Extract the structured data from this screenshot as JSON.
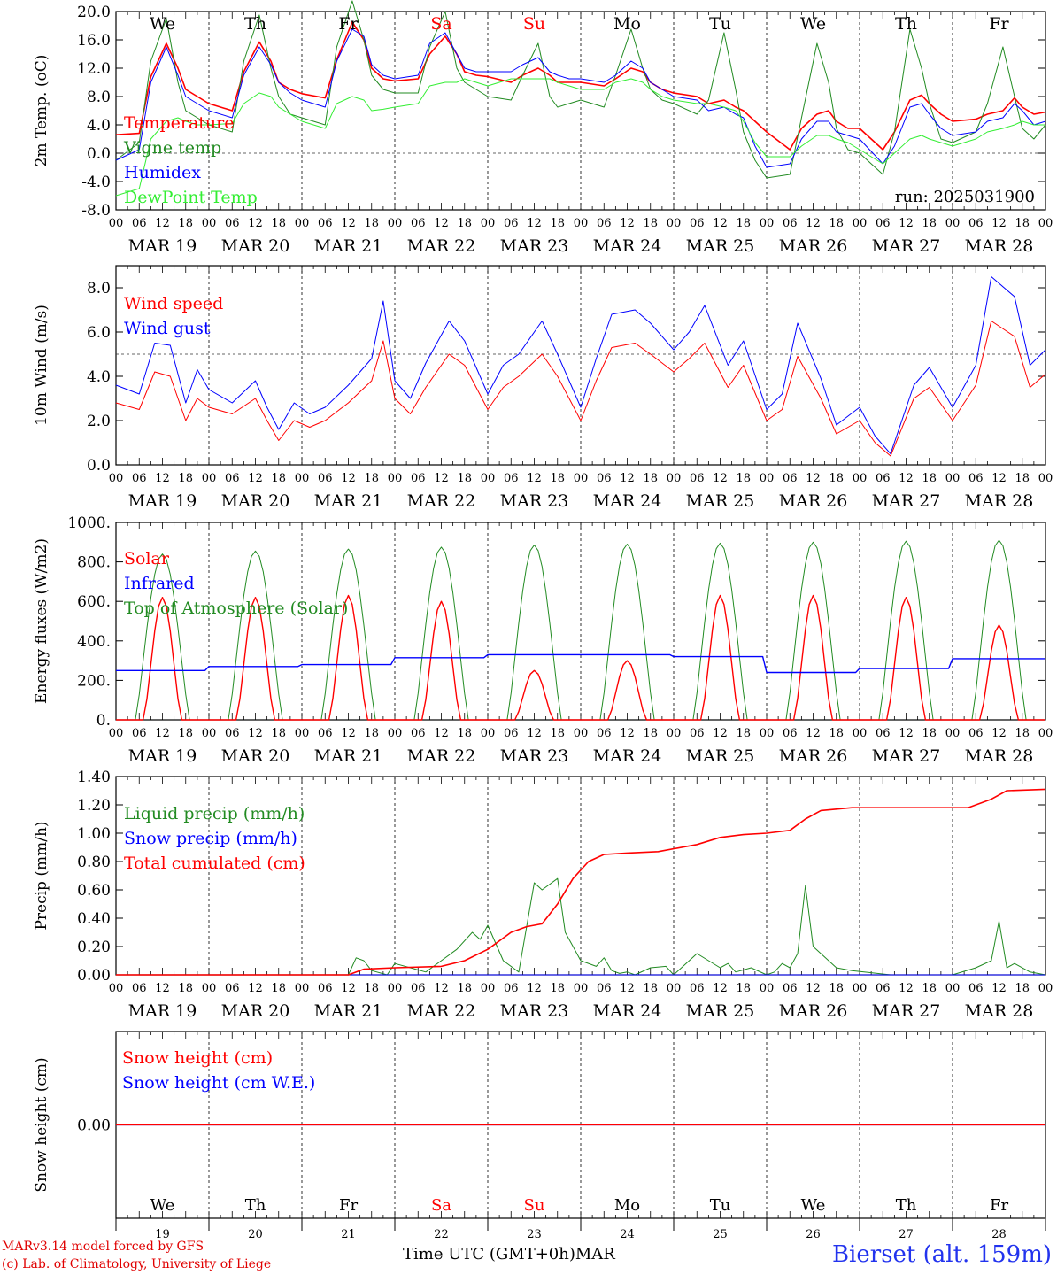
{
  "footer": {
    "credit1": "MARv3.14 model forced by GFS",
    "credit2": "(c) Lab. of Climatology, University of Liege",
    "time_label": "Time UTC (GMT+0h)",
    "month": "MAR",
    "station": "Bierset (alt. 159m)"
  },
  "colors": {
    "red": "#ff0000",
    "blue": "#0000ff",
    "darkgreen": "#228b22",
    "lightgreen": "#33ee33",
    "weekend": "#ff0000",
    "axis": "#000000"
  },
  "chart_data": [
    {
      "type": "line",
      "ylabel": "2m Temp. (oC)",
      "ylim": [
        -8,
        20
      ],
      "yticks": [
        -8,
        -4,
        0,
        4,
        8,
        12,
        16,
        20
      ],
      "ytick_labels": [
        "-8.0",
        "-4.0",
        "0.0",
        "4.0",
        "8.0",
        "12.0",
        "16.0",
        "20.0"
      ],
      "ref_line": 0,
      "run_label": "run: 2025031900",
      "day_names": [
        "We",
        "Th",
        "Fr",
        "Sa",
        "Su",
        "Mo",
        "Tu",
        "We",
        "Th",
        "Fr"
      ],
      "weekend_days": [
        "Sa",
        "Su"
      ],
      "x_hours": [
        0,
        6,
        9,
        13,
        16,
        18,
        21,
        24,
        30,
        33,
        37,
        40,
        42,
        45,
        48,
        54,
        57,
        61,
        64,
        66,
        69,
        72,
        78,
        81,
        85,
        88,
        90,
        93,
        96,
        102,
        105,
        109,
        112,
        114,
        117,
        120,
        126,
        129,
        133,
        136,
        138,
        141,
        144,
        150,
        153,
        157,
        160,
        162,
        165,
        168,
        174,
        177,
        181,
        184,
        186,
        189,
        192,
        198,
        201,
        205,
        208,
        210,
        213,
        216,
        222,
        225,
        229,
        232,
        234,
        237,
        240
      ],
      "series": [
        {
          "name": "Temperature",
          "color": "red",
          "width": 1.6,
          "values": [
            2.6,
            2.8,
            10.8,
            15.5,
            12.0,
            9.0,
            8.0,
            7.0,
            6.0,
            11.5,
            15.7,
            13.0,
            10.0,
            9.0,
            8.4,
            7.8,
            13.2,
            18.5,
            16.0,
            12.0,
            10.5,
            10.2,
            10.5,
            14.0,
            16.5,
            14.0,
            11.5,
            11.0,
            10.8,
            10.0,
            11.0,
            12.0,
            11.0,
            10.0,
            10.0,
            10.0,
            9.5,
            10.5,
            12.0,
            11.5,
            10.0,
            9.0,
            8.5,
            8.0,
            7.0,
            7.5,
            6.5,
            6.0,
            4.5,
            3.0,
            0.5,
            3.5,
            5.5,
            6.0,
            4.5,
            3.5,
            3.5,
            0.5,
            3.0,
            7.5,
            8.2,
            7.0,
            5.5,
            4.5,
            4.8,
            5.5,
            6.0,
            7.8,
            6.5,
            5.5,
            5.8
          ]
        },
        {
          "name": "Vigne temp",
          "color": "darkgreen",
          "width": 1.0,
          "values": [
            -1.0,
            1.5,
            13.0,
            19.0,
            10.0,
            6.0,
            5.0,
            4.0,
            3.0,
            13.0,
            19.5,
            12.0,
            8.0,
            5.5,
            5.0,
            4.0,
            15.0,
            21.5,
            16.0,
            11.0,
            9.0,
            8.5,
            8.5,
            15.0,
            20.0,
            12.0,
            10.0,
            9.0,
            8.0,
            7.5,
            11.0,
            15.5,
            8.0,
            6.5,
            7.0,
            7.5,
            6.5,
            11.0,
            17.5,
            12.0,
            9.0,
            7.5,
            7.0,
            5.5,
            7.5,
            17.0,
            9.0,
            3.0,
            -1.0,
            -3.5,
            -3.0,
            5.0,
            15.5,
            10.0,
            3.5,
            0.5,
            0.0,
            -3.0,
            3.0,
            17.5,
            12.0,
            7.0,
            2.0,
            1.5,
            3.0,
            7.0,
            15.0,
            8.0,
            3.5,
            2.0,
            4.0
          ]
        },
        {
          "name": "Humidex",
          "color": "blue",
          "width": 1.0,
          "values": [
            -1.0,
            0.5,
            10.0,
            15.0,
            11.0,
            8.0,
            7.0,
            6.0,
            5.0,
            11.0,
            15.0,
            12.5,
            10.0,
            8.5,
            7.5,
            6.5,
            13.0,
            17.5,
            16.5,
            12.5,
            11.0,
            10.5,
            11.0,
            15.5,
            17.0,
            14.0,
            12.0,
            11.5,
            11.5,
            11.5,
            12.5,
            13.5,
            11.5,
            11.0,
            10.5,
            10.5,
            10.0,
            11.0,
            13.0,
            12.0,
            10.0,
            9.0,
            8.0,
            7.5,
            6.0,
            6.5,
            5.5,
            5.0,
            1.0,
            -2.0,
            -1.5,
            2.0,
            4.5,
            4.5,
            3.0,
            2.5,
            2.0,
            -1.5,
            1.0,
            6.5,
            7.0,
            5.5,
            3.5,
            2.5,
            3.0,
            4.5,
            5.0,
            7.0,
            6.0,
            4.0,
            4.5
          ]
        },
        {
          "name": "DewPoint Temp",
          "color": "lightgreen",
          "width": 1.0,
          "values": [
            -6.0,
            -5.0,
            2.0,
            4.5,
            5.0,
            4.5,
            4.0,
            4.0,
            4.2,
            7.0,
            8.5,
            8.0,
            6.5,
            5.5,
            4.5,
            3.5,
            7.0,
            8.0,
            7.5,
            6.0,
            6.2,
            6.5,
            7.0,
            9.5,
            10.0,
            10.0,
            10.5,
            10.0,
            9.5,
            10.5,
            10.5,
            10.5,
            10.5,
            10.0,
            9.5,
            9.0,
            9.0,
            10.0,
            10.5,
            10.0,
            9.0,
            8.0,
            7.5,
            7.0,
            7.0,
            6.5,
            6.0,
            4.5,
            1.5,
            -0.5,
            -0.5,
            1.0,
            2.5,
            2.5,
            2.0,
            1.5,
            0.5,
            -1.5,
            0.0,
            2.0,
            2.5,
            2.0,
            1.5,
            1.0,
            2.0,
            3.0,
            3.5,
            4.0,
            4.5,
            4.0,
            4.0
          ]
        }
      ]
    },
    {
      "type": "line",
      "ylabel": "10m Wind (m/s)",
      "ylim": [
        0,
        9
      ],
      "yticks": [
        0,
        2,
        4,
        6,
        8
      ],
      "ytick_labels": [
        "0.0",
        "2.0",
        "4.0",
        "6.0",
        "8.0"
      ],
      "ref_line": 5,
      "x_hours": [
        0,
        6,
        10,
        14,
        18,
        21,
        24,
        30,
        36,
        39,
        42,
        46,
        50,
        54,
        60,
        66,
        69,
        72,
        76,
        80,
        86,
        90,
        96,
        100,
        104,
        110,
        114,
        120,
        124,
        128,
        134,
        138,
        144,
        148,
        152,
        158,
        162,
        168,
        172,
        176,
        182,
        186,
        192,
        196,
        200,
        206,
        210,
        216,
        222,
        226,
        232,
        236,
        240
      ],
      "series": [
        {
          "name": "Wind speed",
          "color": "red",
          "width": 1.0,
          "values": [
            2.8,
            2.5,
            4.2,
            4.0,
            2.0,
            3.0,
            2.6,
            2.3,
            3.0,
            2.0,
            1.1,
            2.0,
            1.7,
            2.0,
            2.8,
            3.8,
            5.6,
            3.0,
            2.3,
            3.5,
            5.0,
            4.5,
            2.5,
            3.5,
            4.0,
            5.0,
            4.0,
            2.0,
            3.8,
            5.3,
            5.5,
            5.0,
            4.2,
            4.8,
            5.5,
            3.5,
            4.5,
            2.0,
            2.5,
            4.9,
            3.0,
            1.4,
            2.0,
            1.0,
            0.4,
            3.0,
            3.5,
            2.0,
            3.6,
            6.5,
            5.8,
            3.5,
            4.1
          ]
        },
        {
          "name": "Wind gust",
          "color": "blue",
          "width": 1.0,
          "values": [
            3.6,
            3.2,
            5.5,
            5.4,
            2.8,
            4.3,
            3.4,
            2.8,
            3.8,
            2.6,
            1.6,
            2.8,
            2.3,
            2.6,
            3.6,
            4.8,
            7.4,
            3.8,
            3.0,
            4.6,
            6.5,
            5.6,
            3.2,
            4.5,
            5.0,
            6.5,
            5.0,
            2.6,
            4.8,
            6.8,
            7.0,
            6.4,
            5.2,
            6.0,
            7.2,
            4.5,
            5.6,
            2.5,
            3.2,
            6.4,
            3.9,
            1.8,
            2.6,
            1.3,
            0.5,
            3.6,
            4.4,
            2.6,
            4.5,
            8.5,
            7.6,
            4.5,
            5.2
          ]
        }
      ]
    },
    {
      "type": "line",
      "ylabel": "Energy fluxes (W/m2)",
      "ylim": [
        0,
        1000
      ],
      "yticks": [
        0,
        200,
        400,
        600,
        800,
        1000
      ],
      "ytick_labels": [
        "0.",
        "200.",
        "400.",
        "600.",
        "800.",
        "1000."
      ],
      "solar_peaks": [
        620,
        620,
        630,
        600,
        250,
        300,
        630,
        630,
        620,
        480
      ],
      "toa_peaks": [
        840,
        855,
        865,
        875,
        885,
        890,
        895,
        900,
        905,
        910
      ],
      "infrared_by_day": [
        250,
        270,
        280,
        315,
        330,
        330,
        320,
        240,
        260,
        310
      ],
      "series": [
        {
          "name": "Solar",
          "color": "red"
        },
        {
          "name": "Infrared",
          "color": "blue"
        },
        {
          "name": "Top of Atmosphere (Solar)",
          "color": "darkgreen"
        }
      ]
    },
    {
      "type": "line",
      "ylabel": "Precip (mm/h)",
      "ylim": [
        0,
        1.4
      ],
      "yticks": [
        0,
        0.2,
        0.4,
        0.6,
        0.8,
        1.0,
        1.2,
        1.4
      ],
      "ytick_labels": [
        "0.00",
        "0.20",
        "0.40",
        "0.60",
        "0.80",
        "1.00",
        "1.20",
        "1.40"
      ],
      "series": [
        {
          "name": "Liquid precip (mm/h)",
          "color": "darkgreen",
          "x": [
            0,
            60,
            62,
            64,
            66,
            70,
            72,
            76,
            80,
            84,
            88,
            92,
            94,
            96,
            100,
            104,
            108,
            110,
            114,
            116,
            118,
            120,
            124,
            126,
            128,
            130,
            132,
            134,
            138,
            142,
            144,
            150,
            156,
            158,
            160,
            164,
            168,
            170,
            172,
            174,
            176,
            178,
            180,
            186,
            190,
            200,
            216,
            222,
            226,
            228,
            230,
            232,
            236,
            240
          ],
          "values": [
            0,
            0,
            0.12,
            0.1,
            0.03,
            0,
            0.08,
            0.05,
            0.02,
            0.1,
            0.18,
            0.3,
            0.25,
            0.35,
            0.1,
            0.02,
            0.65,
            0.6,
            0.68,
            0.3,
            0.2,
            0.1,
            0.06,
            0.12,
            0.03,
            0.01,
            0.02,
            0.0,
            0.05,
            0.06,
            0.0,
            0.15,
            0.05,
            0.08,
            0.02,
            0.05,
            0.0,
            0.02,
            0.08,
            0.05,
            0.15,
            0.63,
            0.2,
            0.05,
            0.03,
            0.0,
            0.0,
            0.05,
            0.1,
            0.38,
            0.05,
            0.08,
            0.02,
            0.0
          ]
        },
        {
          "name": "Snow precip (mm/h)",
          "color": "blue",
          "x": [
            0,
            240
          ],
          "values": [
            0,
            0
          ]
        },
        {
          "name": "Total cumulated (cm)",
          "color": "red",
          "x": [
            0,
            60,
            64,
            72,
            84,
            90,
            96,
            102,
            106,
            110,
            114,
            118,
            122,
            126,
            132,
            140,
            150,
            156,
            162,
            168,
            174,
            178,
            182,
            190,
            200,
            216,
            220,
            226,
            230,
            240
          ],
          "values": [
            0,
            0,
            0.04,
            0.05,
            0.06,
            0.1,
            0.18,
            0.3,
            0.34,
            0.36,
            0.5,
            0.68,
            0.8,
            0.85,
            0.86,
            0.87,
            0.92,
            0.97,
            0.99,
            1.0,
            1.02,
            1.1,
            1.16,
            1.18,
            1.18,
            1.18,
            1.18,
            1.24,
            1.3,
            1.31
          ]
        }
      ]
    },
    {
      "type": "line",
      "ylabel": "Snow height (cm)",
      "ylim": [
        -1,
        1
      ],
      "yticks": [
        0
      ],
      "ytick_labels": [
        "0.00"
      ],
      "day_numbers": [
        "19",
        "20",
        "21",
        "22",
        "23",
        "24",
        "25",
        "26",
        "27",
        "28"
      ],
      "series": [
        {
          "name": "Snow height (cm)",
          "color": "red",
          "x": [
            0,
            240
          ],
          "values": [
            0,
            0
          ]
        },
        {
          "name": "Snow height (cm W.E.)",
          "color": "blue",
          "x": [
            0,
            240
          ],
          "values": [
            0,
            0
          ]
        }
      ]
    }
  ],
  "x_axis": {
    "hour_ticks": [
      "00",
      "06",
      "12",
      "18"
    ],
    "end_tick": "00",
    "date_labels": [
      "MAR 19",
      "MAR 20",
      "MAR 21",
      "MAR 22",
      "MAR 23",
      "MAR 24",
      "MAR 25",
      "MAR 26",
      "MAR 27",
      "MAR 28"
    ]
  }
}
